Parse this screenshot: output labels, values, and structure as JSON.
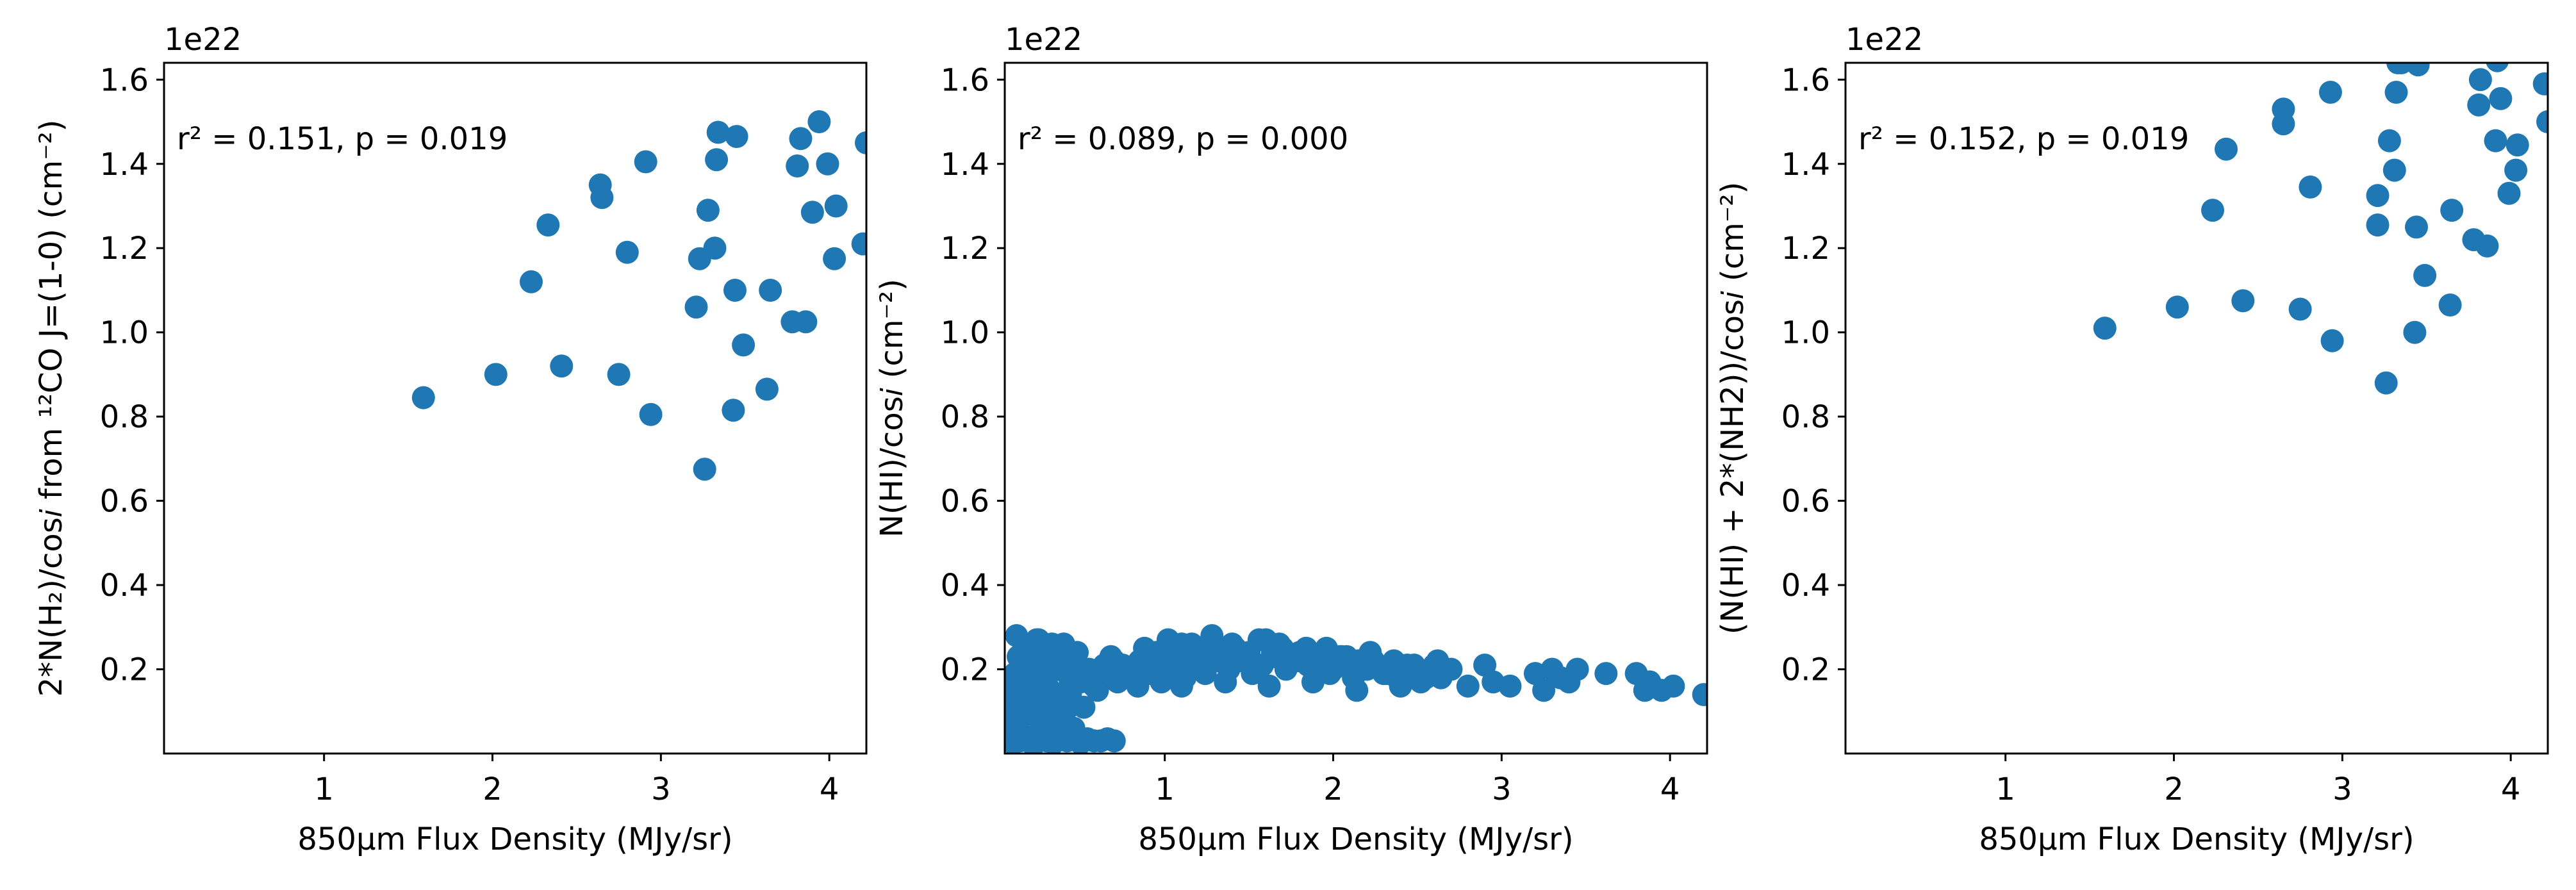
{
  "chart_data": [
    {
      "type": "scatter",
      "xlabel": "850μm Flux Density (MJy/sr)",
      "ylabel": "2*N(H₂)/cos𝑖 from ¹²CO J=(1-0) (cm⁻²)",
      "offset_text": "1e22",
      "annotation": "r² = 0.151, p = 0.019",
      "xlim": [
        0.05,
        4.22
      ],
      "ylim": [
        0.0,
        1.64
      ],
      "xticks": [
        "1",
        "2",
        "3",
        "4"
      ],
      "yticks": [
        "0.2",
        "0.4",
        "0.6",
        "0.8",
        "1.0",
        "1.2",
        "1.4",
        "1.6"
      ],
      "grid": false,
      "marker_color": "#1f77b4",
      "x": [
        1.59,
        2.02,
        2.23,
        2.33,
        2.41,
        2.64,
        2.65,
        2.75,
        2.8,
        2.91,
        2.94,
        3.21,
        3.23,
        3.26,
        3.28,
        3.32,
        3.33,
        3.34,
        3.43,
        3.44,
        3.45,
        3.49,
        3.63,
        3.65,
        3.78,
        3.81,
        3.83,
        3.86,
        3.9,
        3.94,
        3.99,
        4.03,
        4.04,
        4.2,
        4.22
      ],
      "y": [
        0.845,
        0.9,
        1.12,
        1.255,
        0.92,
        1.35,
        1.32,
        0.9,
        1.19,
        1.405,
        0.805,
        1.06,
        1.175,
        0.675,
        1.29,
        1.2,
        1.41,
        1.475,
        0.815,
        1.1,
        1.465,
        0.97,
        0.865,
        1.1,
        1.025,
        1.395,
        1.46,
        1.025,
        1.285,
        1.5,
        1.4,
        1.175,
        1.3,
        1.21,
        1.45
      ]
    },
    {
      "type": "scatter",
      "xlabel": "850μm Flux Density (MJy/sr)",
      "ylabel": "N(HI)/cos𝑖 (cm⁻²)",
      "offset_text": "1e22",
      "annotation": "r² = 0.089, p = 0.000",
      "xlim": [
        0.05,
        4.22
      ],
      "ylim": [
        0.0,
        1.64
      ],
      "xticks": [
        "1",
        "2",
        "3",
        "4"
      ],
      "yticks": [
        "0.2",
        "0.4",
        "0.6",
        "0.8",
        "1.0",
        "1.2",
        "1.4",
        "1.6"
      ],
      "grid": false,
      "marker_color": "#1f77b4",
      "x": [
        0.07,
        0.08,
        0.1,
        0.11,
        0.12,
        0.13,
        0.15,
        0.17,
        0.19,
        0.21,
        0.22,
        0.24,
        0.26,
        0.28,
        0.3,
        0.32,
        0.34,
        0.36,
        0.38,
        0.4,
        0.42,
        0.44,
        0.46,
        0.48,
        0.5,
        0.52,
        0.55,
        0.58,
        0.61,
        0.64,
        0.67,
        0.7,
        0.1,
        0.14,
        0.18,
        0.22,
        0.26,
        0.3,
        0.34,
        0.38,
        0.42,
        0.46,
        0.5,
        0.54,
        0.58,
        0.62,
        0.66,
        0.7,
        0.09,
        0.13,
        0.17,
        0.21,
        0.25,
        0.29,
        0.33,
        0.37,
        0.41,
        0.45,
        0.12,
        0.16,
        0.2,
        0.24,
        0.28,
        0.32,
        0.36,
        0.4,
        0.44,
        0.48,
        0.15,
        0.19,
        0.23,
        0.27,
        0.31,
        0.35,
        0.39,
        0.43,
        0.6,
        0.68,
        0.75,
        0.8,
        0.85,
        0.9,
        0.95,
        1.0,
        1.05,
        1.1,
        1.15,
        1.2,
        1.25,
        1.3,
        1.35,
        1.4,
        1.45,
        1.5,
        1.55,
        1.6,
        1.65,
        1.7,
        1.75,
        1.8,
        1.85,
        1.9,
        1.95,
        2.0,
        2.05,
        2.1,
        2.15,
        2.2,
        2.25,
        2.3,
        2.35,
        2.4,
        2.45,
        2.5,
        2.55,
        2.6,
        2.65,
        2.7,
        0.72,
        0.78,
        0.84,
        0.92,
        0.98,
        1.04,
        1.12,
        1.18,
        1.24,
        1.32,
        1.38,
        1.44,
        1.52,
        1.58,
        1.64,
        1.72,
        1.78,
        1.84,
        1.92,
        1.98,
        2.04,
        2.12,
        2.18,
        2.24,
        2.32,
        2.38,
        2.44,
        2.52,
        2.58,
        2.64,
        0.88,
        1.02,
        1.16,
        1.28,
        1.42,
        1.56,
        1.68,
        1.82,
        1.96,
        2.08,
        2.22,
        2.36,
        2.48,
        2.62,
        1.1,
        1.36,
        1.62,
        1.88,
        2.14,
        2.4,
        2.8,
        2.9,
        2.95,
        3.05,
        3.2,
        3.25,
        3.3,
        3.35,
        3.4,
        3.45,
        3.62,
        3.8,
        3.85,
        3.88,
        3.95,
        4.02,
        4.2
      ],
      "y": [
        0.17,
        0.12,
        0.09,
        0.19,
        0.14,
        0.06,
        0.21,
        0.1,
        0.16,
        0.13,
        0.04,
        0.2,
        0.11,
        0.08,
        0.18,
        0.15,
        0.05,
        0.22,
        0.12,
        0.09,
        0.19,
        0.14,
        0.06,
        0.21,
        0.17,
        0.11,
        0.2,
        0.16,
        0.19,
        0.21,
        0.2,
        0.22,
        0.025,
        0.03,
        0.035,
        0.02,
        0.04,
        0.03,
        0.025,
        0.035,
        0.03,
        0.04,
        0.025,
        0.035,
        0.03,
        0.03,
        0.035,
        0.03,
        0.07,
        0.23,
        0.25,
        0.24,
        0.27,
        0.22,
        0.26,
        0.23,
        0.25,
        0.24,
        0.28,
        0.2,
        0.18,
        0.27,
        0.15,
        0.23,
        0.21,
        0.26,
        0.17,
        0.24,
        0.11,
        0.13,
        0.09,
        0.07,
        0.1,
        0.12,
        0.08,
        0.11,
        0.15,
        0.23,
        0.21,
        0.19,
        0.22,
        0.2,
        0.24,
        0.21,
        0.23,
        0.26,
        0.22,
        0.24,
        0.21,
        0.25,
        0.23,
        0.26,
        0.22,
        0.24,
        0.21,
        0.27,
        0.23,
        0.25,
        0.22,
        0.24,
        0.21,
        0.23,
        0.22,
        0.2,
        0.23,
        0.21,
        0.22,
        0.2,
        0.21,
        0.19,
        0.2,
        0.21,
        0.19,
        0.2,
        0.18,
        0.21,
        0.19,
        0.2,
        0.17,
        0.18,
        0.16,
        0.19,
        0.17,
        0.2,
        0.18,
        0.21,
        0.19,
        0.22,
        0.2,
        0.23,
        0.19,
        0.21,
        0.24,
        0.2,
        0.22,
        0.25,
        0.21,
        0.19,
        0.23,
        0.18,
        0.2,
        0.22,
        0.19,
        0.18,
        0.21,
        0.17,
        0.19,
        0.18,
        0.25,
        0.27,
        0.26,
        0.28,
        0.25,
        0.27,
        0.26,
        0.24,
        0.25,
        0.23,
        0.24,
        0.22,
        0.21,
        0.22,
        0.16,
        0.17,
        0.16,
        0.17,
        0.15,
        0.16,
        0.16,
        0.21,
        0.17,
        0.16,
        0.19,
        0.15,
        0.2,
        0.18,
        0.17,
        0.2,
        0.19,
        0.19,
        0.15,
        0.17,
        0.15,
        0.16,
        0.14
      ]
    },
    {
      "type": "scatter",
      "xlabel": "850μm Flux Density (MJy/sr)",
      "ylabel": "(N(HI) + 2*(NH2))/cos𝑖 (cm⁻²)",
      "offset_text": "1e22",
      "annotation": "r² = 0.152, p = 0.019",
      "xlim": [
        0.05,
        4.22
      ],
      "ylim": [
        0.0,
        1.64
      ],
      "xticks": [
        "1",
        "2",
        "3",
        "4"
      ],
      "yticks": [
        "0.2",
        "0.4",
        "0.6",
        "0.8",
        "1.0",
        "1.2",
        "1.4",
        "1.6"
      ],
      "grid": false,
      "marker_color": "#1f77b4",
      "x": [
        1.59,
        2.02,
        2.23,
        2.31,
        2.41,
        2.65,
        2.65,
        2.75,
        2.81,
        2.93,
        2.94,
        3.21,
        3.21,
        3.26,
        3.28,
        3.31,
        3.32,
        3.33,
        3.35,
        3.43,
        3.44,
        3.45,
        3.49,
        3.64,
        3.65,
        3.78,
        3.81,
        3.82,
        3.86,
        3.91,
        3.92,
        3.94,
        3.99,
        4.03,
        4.04,
        4.2,
        4.22
      ],
      "y": [
        1.01,
        1.06,
        1.29,
        1.435,
        1.075,
        1.53,
        1.495,
        1.055,
        1.345,
        1.57,
        0.98,
        1.255,
        1.325,
        0.88,
        1.455,
        1.385,
        1.57,
        1.64,
        1.64,
        1.0,
        1.25,
        1.635,
        1.135,
        1.065,
        1.29,
        1.22,
        1.54,
        1.6,
        1.205,
        1.455,
        1.645,
        1.555,
        1.33,
        1.385,
        1.445,
        1.59,
        1.5
      ]
    }
  ]
}
